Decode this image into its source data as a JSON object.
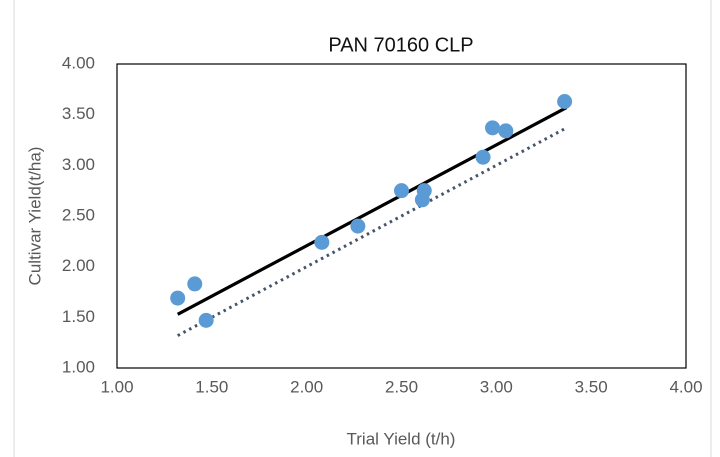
{
  "chart_data": {
    "type": "scatter",
    "title": "PAN 70160 CLP",
    "x_label": "Trial Yield (t/h)",
    "y_label": "Cultivar Yield(t/ha)",
    "x": [
      1.32,
      1.41,
      1.47,
      2.08,
      2.27,
      2.5,
      2.62,
      2.61,
      2.93,
      2.98,
      3.05,
      3.36
    ],
    "values": [
      1.69,
      1.83,
      1.47,
      2.24,
      2.4,
      2.75,
      2.75,
      2.66,
      3.08,
      3.37,
      3.34,
      3.63
    ],
    "color": "#5b9bd5",
    "trendline": {
      "x": [
        1.32,
        3.37
      ],
      "values": [
        1.53,
        3.57
      ],
      "color": "#000000",
      "style": "solid"
    },
    "reference_line": {
      "x": [
        1.32,
        3.37
      ],
      "values": [
        1.32,
        3.37
      ],
      "color": "#44546a",
      "style": "dotted"
    },
    "xlim": [
      1,
      4
    ],
    "ylim": [
      1,
      4
    ],
    "xticks": [
      {
        "value": 1,
        "label": "1.00"
      },
      {
        "value": 1.5,
        "label": "1.50"
      },
      {
        "value": 2,
        "label": "2.00"
      },
      {
        "value": 2.5,
        "label": "2.50"
      },
      {
        "value": 3,
        "label": "3.00"
      },
      {
        "value": 3.5,
        "label": "3.50"
      },
      {
        "value": 4,
        "label": "4.00"
      }
    ],
    "yticks": [
      {
        "value": 1,
        "label": "1.00"
      },
      {
        "value": 1.5,
        "label": "1.50"
      },
      {
        "value": 2,
        "label": "2.00"
      },
      {
        "value": 2.5,
        "label": "2.50"
      },
      {
        "value": 3,
        "label": "3.00"
      },
      {
        "value": 3.5,
        "label": "3.50"
      },
      {
        "value": 4,
        "label": "4.00"
      }
    ],
    "grid": false
  }
}
